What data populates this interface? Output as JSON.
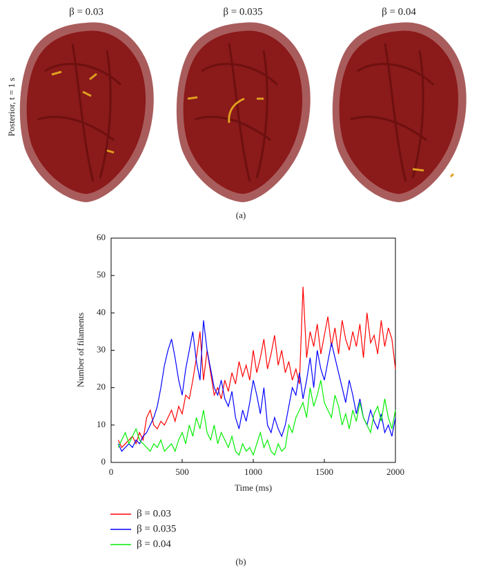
{
  "panel_a": {
    "labels": [
      "β = 0.03",
      "β = 0.035",
      "β = 0.04"
    ],
    "side_label": "Posterior, t = 1 s",
    "caption": "(a)"
  },
  "chart_data": {
    "type": "line",
    "xlabel": "Time (ms)",
    "ylabel": "Number of filaments",
    "x": [
      50,
      75,
      100,
      125,
      150,
      175,
      200,
      225,
      250,
      275,
      300,
      325,
      350,
      375,
      400,
      425,
      450,
      475,
      500,
      525,
      550,
      575,
      600,
      625,
      650,
      675,
      700,
      725,
      750,
      775,
      800,
      825,
      850,
      875,
      900,
      925,
      950,
      975,
      1000,
      1025,
      1050,
      1075,
      1100,
      1125,
      1150,
      1175,
      1200,
      1225,
      1250,
      1275,
      1300,
      1325,
      1350,
      1375,
      1400,
      1425,
      1450,
      1475,
      1500,
      1525,
      1550,
      1575,
      1600,
      1625,
      1650,
      1675,
      1700,
      1725,
      1750,
      1775,
      1800,
      1825,
      1850,
      1875,
      1900,
      1925,
      1950,
      1975,
      2000
    ],
    "series": [
      {
        "name": "β = 0.03",
        "color": "#ff0000",
        "values": [
          6,
          4,
          5,
          6,
          7,
          5,
          8,
          6,
          12,
          14,
          10,
          9,
          11,
          10,
          12,
          14,
          11,
          15,
          13,
          18,
          17,
          22,
          28,
          35,
          22,
          30,
          24,
          18,
          20,
          17,
          22,
          19,
          24,
          21,
          27,
          23,
          26,
          22,
          30,
          24,
          28,
          33,
          25,
          29,
          34,
          26,
          30,
          24,
          27,
          22,
          25,
          21,
          47,
          28,
          35,
          31,
          37,
          29,
          34,
          39,
          31,
          36,
          29,
          38,
          33,
          30,
          35,
          31,
          37,
          28,
          40,
          32,
          34,
          29,
          38,
          31,
          36,
          33,
          25
        ]
      },
      {
        "name": "β = 0.035",
        "color": "#0000ff",
        "values": [
          5,
          3,
          4,
          5,
          4,
          6,
          5,
          7,
          8,
          10,
          12,
          15,
          20,
          26,
          30,
          33,
          28,
          22,
          18,
          25,
          30,
          35,
          27,
          22,
          38,
          30,
          25,
          20,
          18,
          22,
          17,
          15,
          19,
          12,
          9,
          14,
          11,
          16,
          22,
          18,
          13,
          20,
          10,
          8,
          12,
          9,
          7,
          10,
          15,
          20,
          18,
          24,
          17,
          22,
          28,
          20,
          30,
          25,
          22,
          27,
          32,
          28,
          24,
          20,
          16,
          22,
          18,
          13,
          17,
          12,
          10,
          14,
          11,
          9,
          13,
          8,
          10,
          7,
          12
        ]
      },
      {
        "name": "β = 0.04",
        "color": "#00ee00",
        "values": [
          4,
          6,
          8,
          5,
          7,
          9,
          6,
          5,
          4,
          3,
          5,
          4,
          6,
          3,
          4,
          5,
          3,
          6,
          8,
          5,
          10,
          7,
          12,
          9,
          14,
          8,
          6,
          10,
          5,
          8,
          6,
          4,
          7,
          3,
          2,
          5,
          3,
          4,
          2,
          5,
          8,
          4,
          6,
          3,
          2,
          5,
          3,
          4,
          10,
          8,
          12,
          14,
          16,
          12,
          20,
          15,
          18,
          22,
          16,
          14,
          12,
          18,
          15,
          10,
          13,
          9,
          14,
          11,
          16,
          12,
          10,
          8,
          13,
          15,
          11,
          17,
          12,
          9,
          14
        ]
      }
    ],
    "xlim": [
      0,
      2000
    ],
    "xticks": [
      0,
      500,
      1000,
      1500,
      2000
    ],
    "ylim": [
      0,
      60
    ],
    "yticks": [
      0,
      10,
      20,
      30,
      40,
      50,
      60
    ],
    "legend": "bottom-left",
    "grid": false
  },
  "caption_b": "(b)"
}
